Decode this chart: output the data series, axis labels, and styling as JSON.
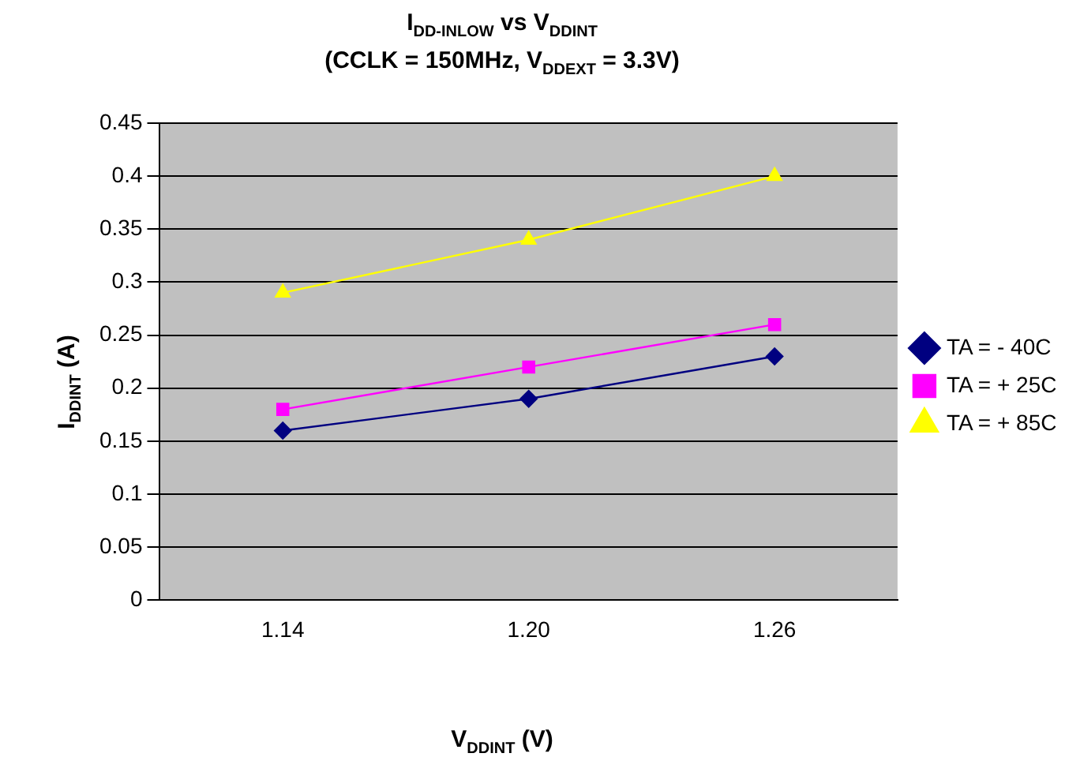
{
  "chart_data": {
    "type": "line",
    "title": "I$_{DD-INLOW}$ vs V$_{DDINT}$",
    "subtitle": "(CCLK = 150MHz, V$_{DDEXT}$ = 3.3V)",
    "xlabel": "V$_{DDINT}$ (V)",
    "ylabel": "I$_{DDINT}$ (A)",
    "categories": [
      "1.14",
      "1.20",
      "1.26"
    ],
    "series": [
      {
        "name": "TA = - 40C",
        "color": "#000080",
        "marker": "diamond",
        "values": [
          0.16,
          0.19,
          0.23
        ]
      },
      {
        "name": "TA = + 25C",
        "color": "#ff00ff",
        "marker": "square",
        "values": [
          0.18,
          0.22,
          0.26
        ]
      },
      {
        "name": "TA = + 85C",
        "color": "#ffff00",
        "marker": "triangle",
        "values": [
          0.29,
          0.34,
          0.4
        ]
      }
    ],
    "ylim": [
      0,
      0.45
    ],
    "yticks": [
      0,
      0.05,
      0.1,
      0.15,
      0.2,
      0.25,
      0.3,
      0.35,
      0.4,
      0.45
    ],
    "grid": "y",
    "legend": "right",
    "line_style": "solid"
  }
}
